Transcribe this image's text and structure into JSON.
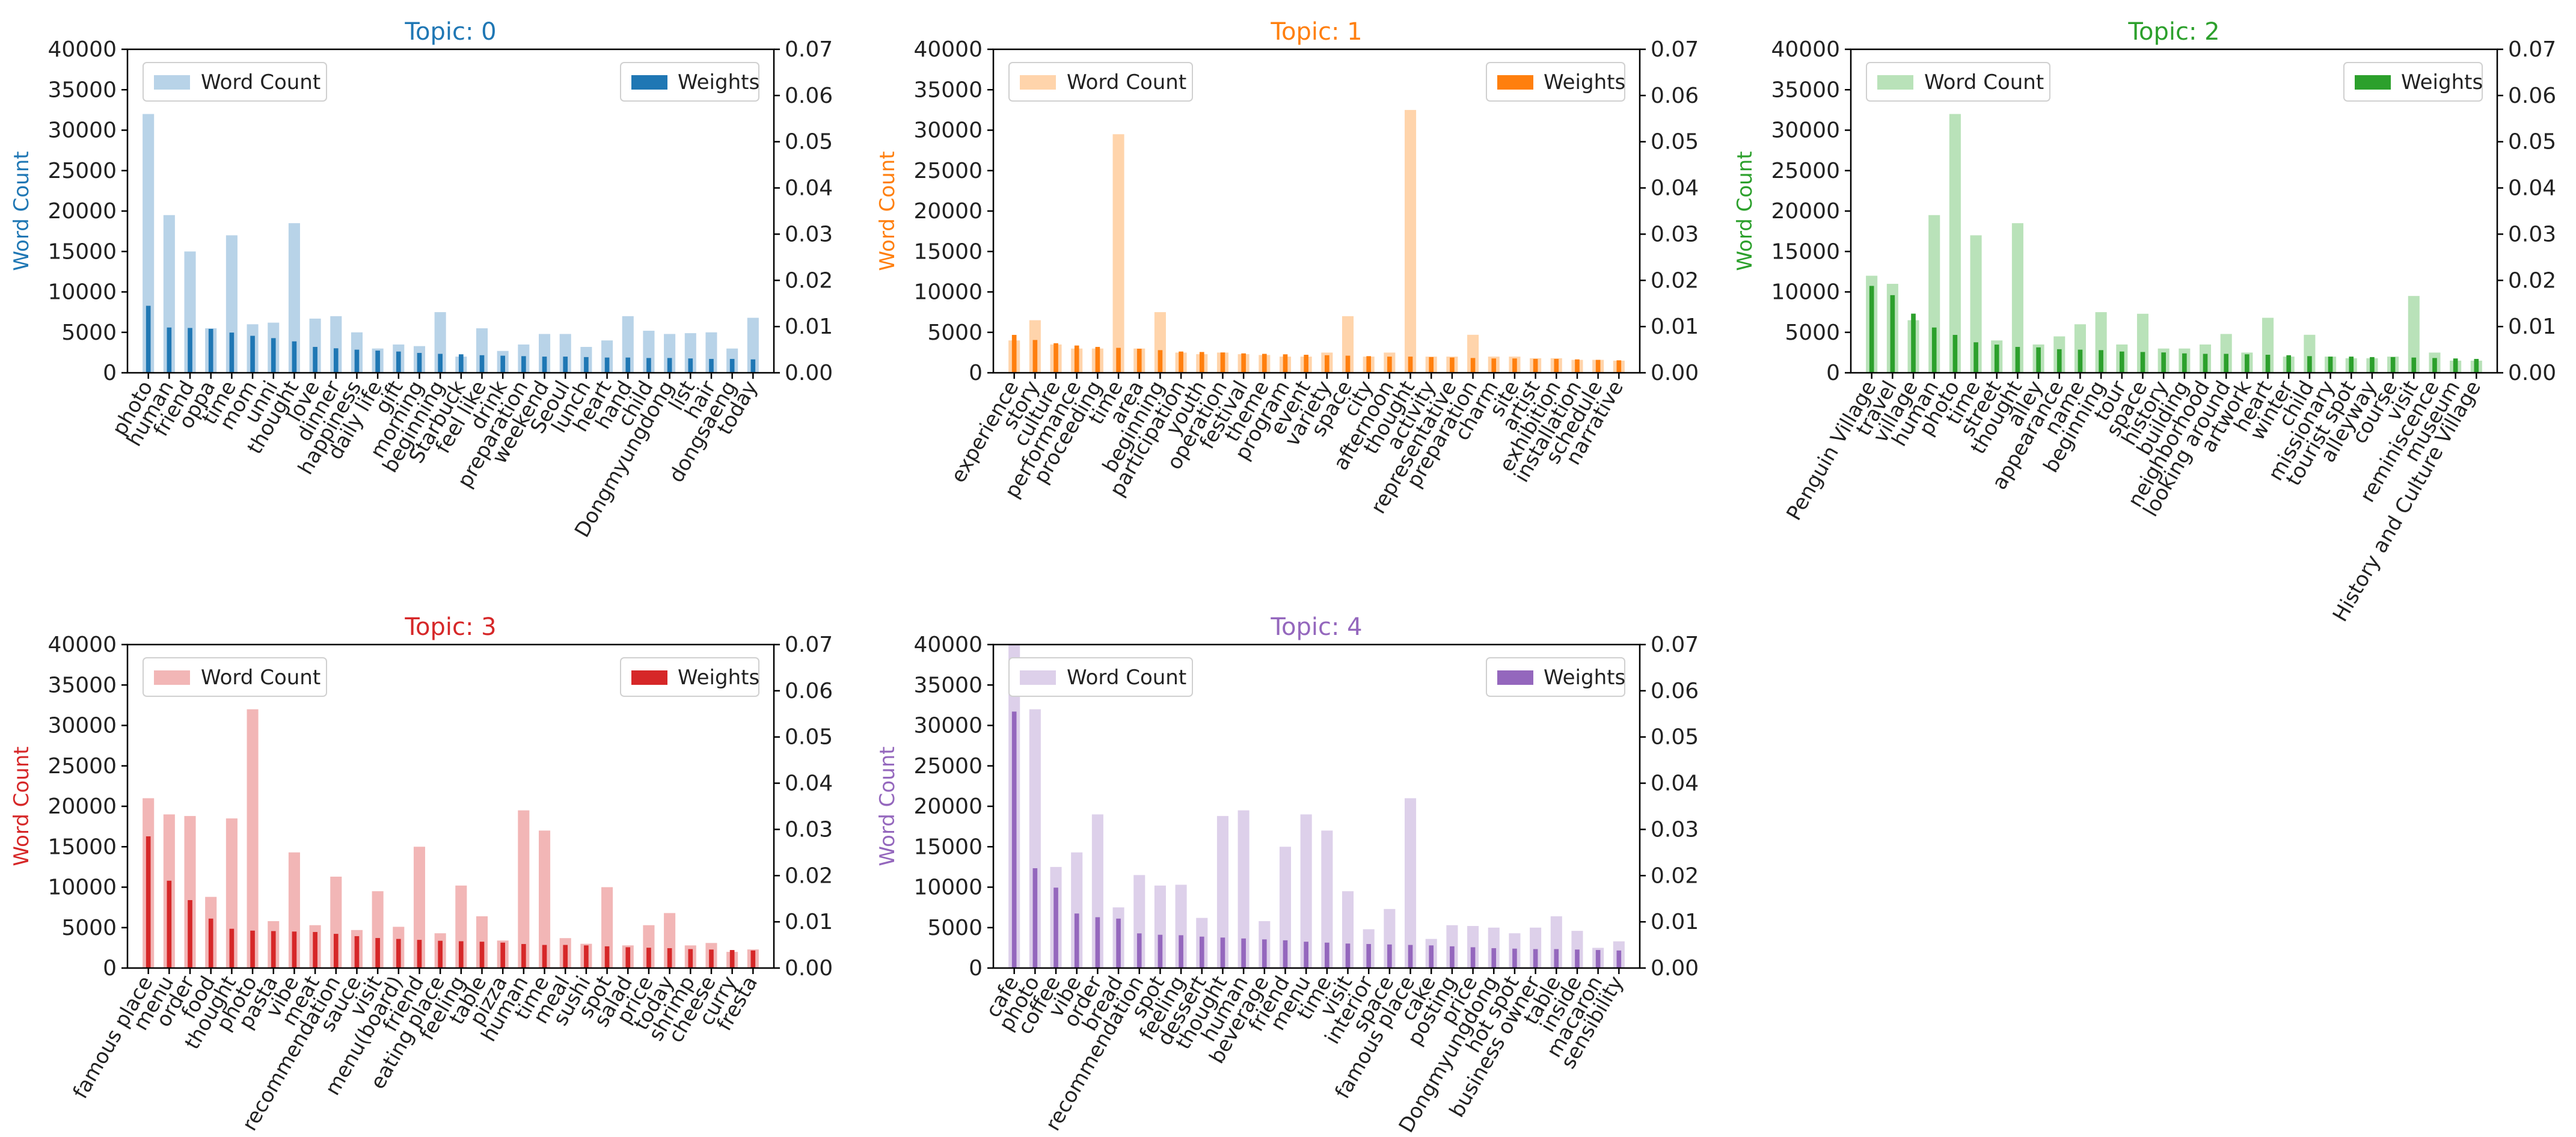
{
  "chart_data": [
    {
      "type": "bar",
      "title": "Topic: 0",
      "color": "#1f77b4",
      "light_color": "#b8d3e8",
      "ylabel": "Word Count",
      "ylim": [
        0,
        40000
      ],
      "y2lim": [
        0,
        0.07
      ],
      "yticks": [
        "0",
        "5000",
        "10000",
        "15000",
        "20000",
        "25000",
        "30000",
        "35000",
        "40000"
      ],
      "y2ticks": [
        "0.00",
        "0.01",
        "0.02",
        "0.03",
        "0.04",
        "0.05",
        "0.06",
        "0.07"
      ],
      "legend": {
        "word_count": "Word Count",
        "weights": "Weights"
      },
      "categories": [
        "photo",
        "human",
        "friend",
        "oppa",
        "time",
        "mom",
        "unni",
        "thought",
        "love",
        "dinner",
        "happiness",
        "daily life",
        "gift",
        "morning",
        "beginning",
        "Starbuck",
        "feel like",
        "drink",
        "preparation",
        "weekend",
        "Seoul",
        "lunch",
        "heart",
        "hand",
        "child",
        "Dongmyungdong",
        "list",
        "hair",
        "dongsaeng",
        "today"
      ],
      "word_counts": [
        32000,
        19500,
        15000,
        5500,
        17000,
        6000,
        6200,
        18500,
        6700,
        7000,
        5000,
        3000,
        3500,
        3300,
        7500,
        2000,
        5500,
        2700,
        3500,
        4800,
        4800,
        3200,
        4000,
        7000,
        5200,
        4800,
        4900,
        5000,
        3000,
        6800
      ],
      "weights": [
        0.0145,
        0.0098,
        0.0097,
        0.0095,
        0.0087,
        0.008,
        0.0075,
        0.0068,
        0.0056,
        0.0053,
        0.005,
        0.0048,
        0.0046,
        0.0043,
        0.0041,
        0.004,
        0.0038,
        0.0037,
        0.0036,
        0.0035,
        0.0035,
        0.0034,
        0.0033,
        0.0033,
        0.0032,
        0.0032,
        0.0031,
        0.003,
        0.003,
        0.0029
      ]
    },
    {
      "type": "bar",
      "title": "Topic: 1",
      "color": "#ff7f0e",
      "light_color": "#ffd4ab",
      "ylabel": "Word Count",
      "ylim": [
        0,
        40000
      ],
      "y2lim": [
        0,
        0.07
      ],
      "yticks": [
        "0",
        "5000",
        "10000",
        "15000",
        "20000",
        "25000",
        "30000",
        "35000",
        "40000"
      ],
      "y2ticks": [
        "0.00",
        "0.01",
        "0.02",
        "0.03",
        "0.04",
        "0.05",
        "0.06",
        "0.07"
      ],
      "legend": {
        "word_count": "Word Count",
        "weights": "Weights"
      },
      "categories": [
        "experience",
        "story",
        "culture",
        "performance",
        "proceeding",
        "time",
        "area",
        "beginning",
        "participation",
        "youth",
        "operation",
        "festival",
        "theme",
        "program",
        "event",
        "variety",
        "space",
        "city",
        "afternoon",
        "thought",
        "activity",
        "representative",
        "preparation",
        "charm",
        "site",
        "artist",
        "exhibition",
        "installation",
        "schedule",
        "narrative"
      ],
      "word_counts": [
        4000,
        6500,
        3500,
        3000,
        3000,
        29500,
        3000,
        7500,
        2500,
        2300,
        2500,
        2300,
        2200,
        2000,
        2000,
        2500,
        7000,
        2000,
        2500,
        32500,
        2000,
        2000,
        4700,
        2000,
        2000,
        1800,
        1800,
        1600,
        1600,
        1500
      ],
      "weights": [
        0.0082,
        0.0071,
        0.0064,
        0.0059,
        0.0056,
        0.0054,
        0.0052,
        0.0049,
        0.0046,
        0.0045,
        0.0044,
        0.0042,
        0.0041,
        0.004,
        0.0039,
        0.0038,
        0.0037,
        0.0036,
        0.0035,
        0.0035,
        0.0034,
        0.0033,
        0.0032,
        0.0031,
        0.0031,
        0.003,
        0.003,
        0.0029,
        0.0028,
        0.0027
      ]
    },
    {
      "type": "bar",
      "title": "Topic: 2",
      "color": "#2ca02c",
      "light_color": "#b9e2b9",
      "ylabel": "Word Count",
      "ylim": [
        0,
        40000
      ],
      "y2lim": [
        0,
        0.07
      ],
      "yticks": [
        "0",
        "5000",
        "10000",
        "15000",
        "20000",
        "25000",
        "30000",
        "35000",
        "40000"
      ],
      "y2ticks": [
        "0.00",
        "0.01",
        "0.02",
        "0.03",
        "0.04",
        "0.05",
        "0.06",
        "0.07"
      ],
      "legend": {
        "word_count": "Word Count",
        "weights": "Weights"
      },
      "categories": [
        "Penguin Village",
        "travel",
        "village",
        "human",
        "photo",
        "time",
        "street",
        "thought",
        "alley",
        "appearance",
        "name",
        "beginning",
        "tour",
        "space",
        "history",
        "building",
        "neighborhood",
        "looking around",
        "artwork",
        "heart",
        "winter",
        "child",
        "missionary",
        "tourist spot",
        "alleyway",
        "course",
        "visit",
        "reminiscence",
        "museum",
        "History and Culture Village"
      ],
      "word_counts": [
        12000,
        11000,
        6500,
        19500,
        32000,
        17000,
        4000,
        18500,
        3500,
        4500,
        6000,
        7500,
        3500,
        7300,
        3000,
        3000,
        3500,
        4800,
        2500,
        6800,
        2000,
        4700,
        2000,
        1800,
        1800,
        2000,
        9500,
        2500,
        1500,
        1500
      ],
      "weights": [
        0.0188,
        0.0168,
        0.0128,
        0.0098,
        0.0082,
        0.0066,
        0.0061,
        0.0056,
        0.0055,
        0.0051,
        0.005,
        0.0049,
        0.0046,
        0.0045,
        0.0044,
        0.0042,
        0.0041,
        0.0041,
        0.004,
        0.0039,
        0.0038,
        0.0036,
        0.0035,
        0.0035,
        0.0034,
        0.0034,
        0.0033,
        0.0032,
        0.0031,
        0.003
      ]
    },
    {
      "type": "bar",
      "title": "Topic: 3",
      "color": "#d62728",
      "light_color": "#f2b6b6",
      "ylabel": "Word Count",
      "ylim": [
        0,
        40000
      ],
      "y2lim": [
        0,
        0.07
      ],
      "yticks": [
        "0",
        "5000",
        "10000",
        "15000",
        "20000",
        "25000",
        "30000",
        "35000",
        "40000"
      ],
      "y2ticks": [
        "0.00",
        "0.01",
        "0.02",
        "0.03",
        "0.04",
        "0.05",
        "0.06",
        "0.07"
      ],
      "legend": {
        "word_count": "Word Count",
        "weights": "Weights"
      },
      "categories": [
        "famous place",
        "menu",
        "order",
        "food",
        "thought",
        "photo",
        "pasta",
        "vibe",
        "meat",
        "recommendation",
        "sauce",
        "visit",
        "menu(board)",
        "friend",
        "eating place",
        "feeling",
        "table",
        "pizza",
        "human",
        "time",
        "meal",
        "sushi",
        "spot",
        "salad",
        "price",
        "today",
        "shrimp",
        "cheese",
        "curry",
        "fresta"
      ],
      "word_counts": [
        21000,
        19000,
        18800,
        8800,
        18500,
        32000,
        5800,
        14300,
        5300,
        11300,
        4700,
        9500,
        5100,
        15000,
        4300,
        10200,
        6400,
        3400,
        19500,
        17000,
        3700,
        3000,
        10000,
        2800,
        5300,
        6800,
        2800,
        3100,
        2000,
        2300
      ],
      "weights": [
        0.0285,
        0.0189,
        0.0147,
        0.0107,
        0.0085,
        0.0081,
        0.008,
        0.0079,
        0.0078,
        0.0074,
        0.0069,
        0.0065,
        0.0063,
        0.0061,
        0.0059,
        0.0058,
        0.0057,
        0.0055,
        0.0052,
        0.005,
        0.005,
        0.0049,
        0.0047,
        0.0045,
        0.0044,
        0.0043,
        0.0041,
        0.004,
        0.0039,
        0.0038
      ]
    },
    {
      "type": "bar",
      "title": "Topic: 4",
      "color": "#9467bd",
      "light_color": "#ddd0ea",
      "ylabel": "Word Count",
      "ylim": [
        0,
        40000
      ],
      "y2lim": [
        0,
        0.07
      ],
      "yticks": [
        "0",
        "5000",
        "10000",
        "15000",
        "20000",
        "25000",
        "30000",
        "35000",
        "40000"
      ],
      "y2ticks": [
        "0.00",
        "0.01",
        "0.02",
        "0.03",
        "0.04",
        "0.05",
        "0.06",
        "0.07"
      ],
      "legend": {
        "word_count": "Word Count",
        "weights": "Weights"
      },
      "categories": [
        "cafe",
        "photo",
        "coffee",
        "vibe",
        "order",
        "bread",
        "recommendation",
        "spot",
        "feeling",
        "dessert",
        "thought",
        "human",
        "beverage",
        "friend",
        "menu",
        "time",
        "visit",
        "interior",
        "space",
        "famous place",
        "cake",
        "posting",
        "price",
        "Dongmyungdong",
        "hot spot",
        "business owner",
        "table",
        "inside",
        "macaron",
        "sensibility"
      ],
      "word_counts": [
        40000,
        32000,
        12500,
        14300,
        19000,
        7500,
        11500,
        10200,
        10300,
        6200,
        18800,
        19500,
        5800,
        15000,
        19000,
        17000,
        9500,
        4800,
        7300,
        21000,
        3600,
        5300,
        5200,
        5000,
        4300,
        5000,
        6400,
        4600,
        2500,
        3300
      ],
      "weights": [
        0.0555,
        0.0216,
        0.0174,
        0.0118,
        0.011,
        0.0107,
        0.0075,
        0.0072,
        0.0071,
        0.0068,
        0.0066,
        0.0064,
        0.0062,
        0.006,
        0.0057,
        0.0055,
        0.0053,
        0.0052,
        0.0051,
        0.005,
        0.0049,
        0.0047,
        0.0045,
        0.0043,
        0.0042,
        0.0041,
        0.0041,
        0.004,
        0.0039,
        0.0038
      ]
    }
  ]
}
